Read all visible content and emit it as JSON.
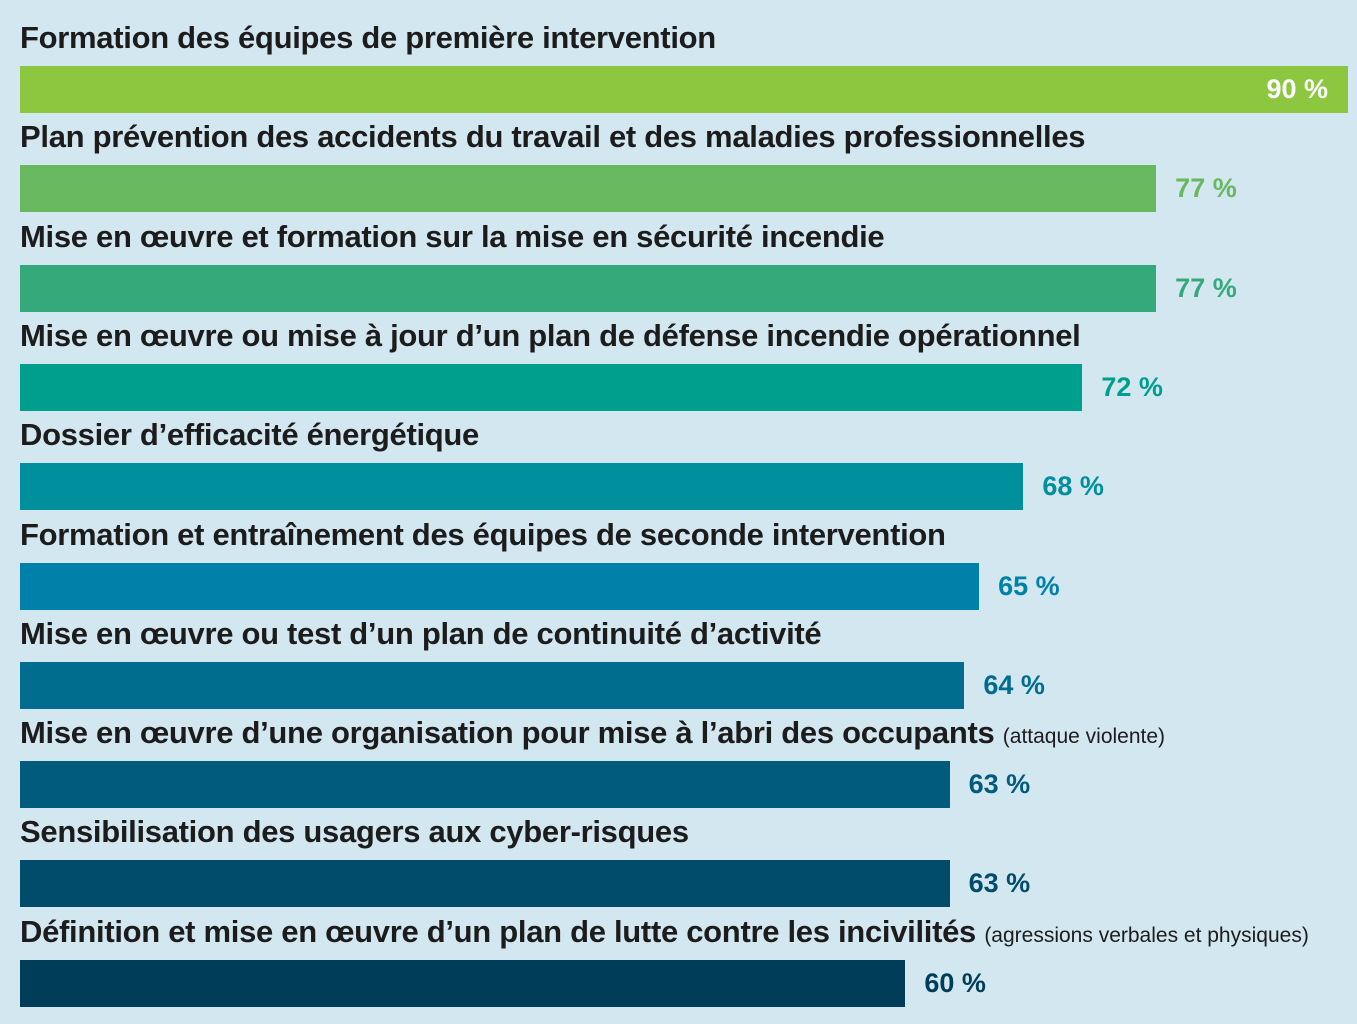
{
  "chart_data": {
    "type": "bar",
    "orientation": "horizontal",
    "grid": false,
    "legend": "none",
    "xlim": [
      0,
      90
    ],
    "bars": [
      {
        "label": "Formation des équipes de première intervention",
        "note": "",
        "value": 90,
        "value_label": "90 %",
        "color": "#8dc63f"
      },
      {
        "label": "Plan prévention des accidents du travail et des maladies professionnelles",
        "note": "",
        "value": 77,
        "value_label": "77 %",
        "color": "#67b85f"
      },
      {
        "label": "Mise en œuvre et formation sur la mise en sécurité incendie",
        "note": "",
        "value": 77,
        "value_label": "77 %",
        "color": "#35a97a"
      },
      {
        "label": "Mise en œuvre ou mise à jour d’un plan de défense incendie opérationnel",
        "note": "",
        "value": 72,
        "value_label": "72 %",
        "color": "#009e8c"
      },
      {
        "label": "Dossier d’efficacité énergétique",
        "note": "",
        "value": 68,
        "value_label": "68 %",
        "color": "#00909d"
      },
      {
        "label": "Formation et entraînement des équipes de seconde intervention",
        "note": "",
        "value": 65,
        "value_label": "65 %",
        "color": "#0081aa"
      },
      {
        "label": "Mise en œuvre ou test d’un plan de continuité d’activité",
        "note": "",
        "value": 64,
        "value_label": "64 %",
        "color": "#006d8f"
      },
      {
        "label": "Mise en œuvre d’une organisation pour mise à l’abri des occupants",
        "note": "(attaque violente)",
        "value": 63,
        "value_label": "63 %",
        "color": "#005b7d"
      },
      {
        "label": "Sensibilisation des usagers aux cyber-risques",
        "note": "",
        "value": 63,
        "value_label": "63 %",
        "color": "#004c6a"
      },
      {
        "label": "Définition et mise en œuvre d’un plan de lutte contre les incivilités",
        "note": "(agressions verbales et physiques)",
        "value": 60,
        "value_label": "60 %",
        "color": "#003d58"
      }
    ]
  }
}
